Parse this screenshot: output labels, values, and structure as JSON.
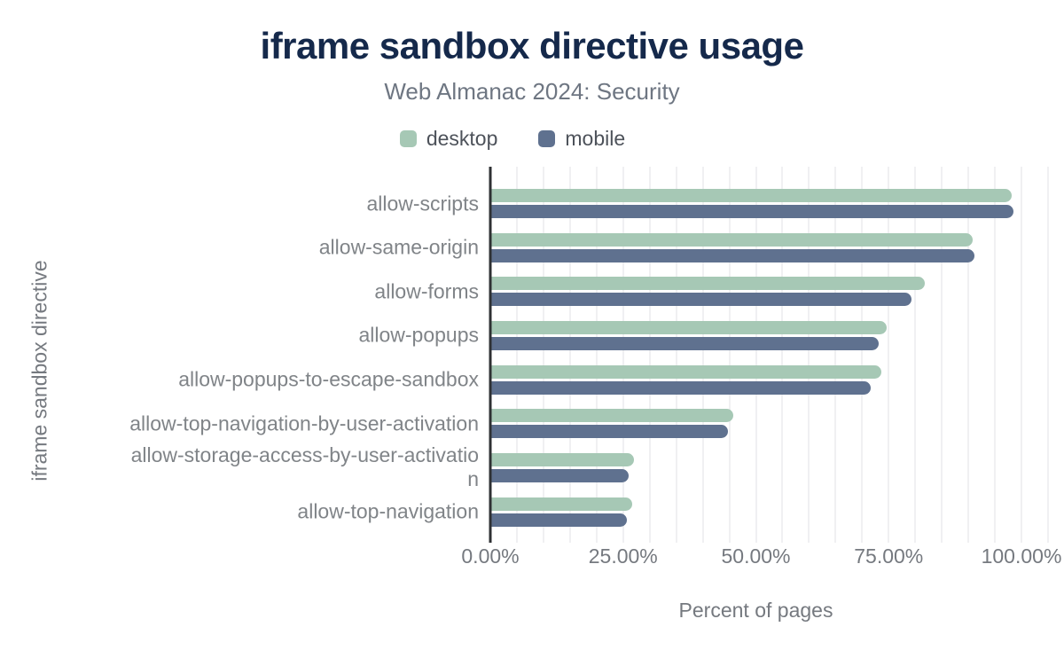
{
  "chart_data": {
    "type": "bar",
    "orientation": "horizontal",
    "title": "iframe sandbox directive usage",
    "subtitle": "Web Almanac 2024: Security",
    "xlabel": "Percent of pages",
    "ylabel": "iframe sandbox directive",
    "xlim": [
      0,
      105
    ],
    "grid": true,
    "gridline_step_percent": 5,
    "legend_position": "top",
    "x_ticks": [
      {
        "value": 0,
        "label": "0.00%"
      },
      {
        "value": 25,
        "label": "25.00%"
      },
      {
        "value": 50,
        "label": "50.00%"
      },
      {
        "value": 75,
        "label": "75.00%"
      },
      {
        "value": 100,
        "label": "100.00%"
      }
    ],
    "categories": [
      {
        "name": "allow-scripts"
      },
      {
        "name": "allow-same-origin"
      },
      {
        "name": "allow-forms"
      },
      {
        "name": "allow-popups"
      },
      {
        "name": "allow-popups-to-escape-sandbox"
      },
      {
        "name": "allow-top-navigation-by-user-activation"
      },
      {
        "name": "allow-storage-access-by-user-activation",
        "lines": [
          "allow-storage-access-by-user-activatio",
          "n"
        ]
      },
      {
        "name": "allow-top-navigation"
      }
    ],
    "series": [
      {
        "name": "desktop",
        "color": "#a6c8b5",
        "values": [
          98.2,
          90.8,
          81.8,
          74.6,
          73.6,
          45.7,
          27.0,
          26.7
        ]
      },
      {
        "name": "mobile",
        "color": "#5f718f",
        "values": [
          98.5,
          91.2,
          79.3,
          73.1,
          71.6,
          44.7,
          26.0,
          25.7
        ]
      }
    ]
  },
  "colors": {
    "background": "#ffffff",
    "title": "#15294b",
    "subtitle": "#6e7682",
    "axis_text": "#75797f",
    "category_text": "#808488",
    "legend_text": "#4d525a",
    "axis_line": "#2f3134",
    "gridline": "#f0f0f2",
    "desktop": "#a6c8b5",
    "mobile": "#5f718f"
  }
}
